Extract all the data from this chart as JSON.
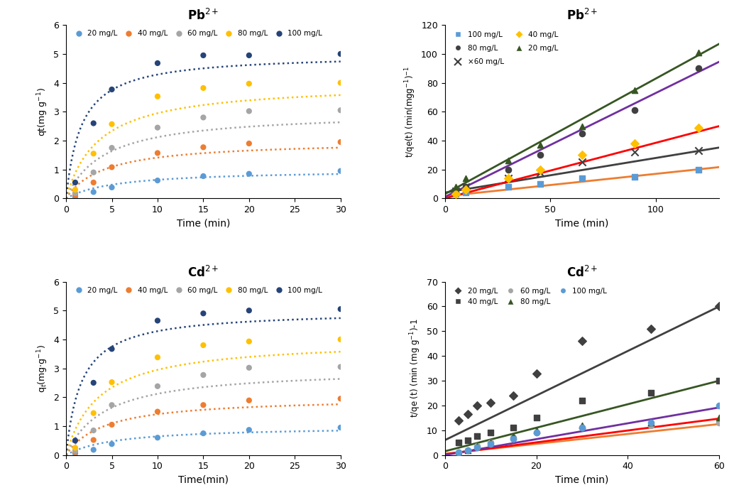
{
  "pb_kinetic": {
    "title": "Pb$^{2+}$",
    "xlabel": "Time (min)",
    "ylabel": "qt(mg g$^{-1}$)",
    "xlim": [
      0,
      30
    ],
    "ylim": [
      0,
      6
    ],
    "yticks": [
      0,
      1,
      2,
      3,
      4,
      5,
      6
    ],
    "xticks": [
      0,
      5,
      10,
      15,
      20,
      25,
      30
    ],
    "time_points": [
      1,
      3,
      5,
      10,
      15,
      20,
      30
    ],
    "series": [
      {
        "label": "20 mg/L",
        "color": "#5B9BD5",
        "qe": 1.0,
        "k2": 0.18,
        "data": [
          0.05,
          0.22,
          0.38,
          0.62,
          0.77,
          0.85,
          0.95
        ]
      },
      {
        "label": "40 mg/L",
        "color": "#ED7D31",
        "qe": 2.0,
        "k2": 0.12,
        "data": [
          0.12,
          0.55,
          1.08,
          1.57,
          1.77,
          1.9,
          1.95
        ]
      },
      {
        "label": "60 mg/L",
        "color": "#A5A5A5",
        "qe": 3.0,
        "k2": 0.08,
        "data": [
          0.18,
          0.9,
          1.75,
          2.45,
          2.8,
          3.02,
          3.05
        ]
      },
      {
        "label": "80 mg/L",
        "color": "#FFC000",
        "qe": 4.0,
        "k2": 0.07,
        "data": [
          0.3,
          1.55,
          2.57,
          3.53,
          3.82,
          3.97,
          4.0
        ]
      },
      {
        "label": "100 mg/L",
        "color": "#264478",
        "qe": 5.0,
        "k2": 0.12,
        "data": [
          0.55,
          2.6,
          3.77,
          4.68,
          4.95,
          4.95,
          5.0
        ]
      }
    ]
  },
  "pb_pseudo2": {
    "title": "Pb$^{2+}$",
    "xlabel": "Time (min)",
    "xlim": [
      0,
      130
    ],
    "ylim": [
      0,
      120
    ],
    "xticks": [
      0,
      50,
      100
    ],
    "yticks": [
      0,
      20,
      40,
      60,
      80,
      100,
      120
    ],
    "series": [
      {
        "label": "100 mg/L",
        "marker": "s",
        "mfc": "#5B9BD5",
        "mec": "#5B9BD5",
        "linecolor": "#ED7D31",
        "pts_x": [
          5,
          10,
          30,
          45,
          65,
          90,
          120
        ],
        "pts_y": [
          3.0,
          4.0,
          8.0,
          10.0,
          14.0,
          15.0,
          20.0
        ],
        "intercept": 1.5,
        "slope": 0.155
      },
      {
        "label": "80 mg/L",
        "marker": "o",
        "mfc": "#404040",
        "mec": "#404040",
        "linecolor": "#7030A0",
        "pts_x": [
          5,
          10,
          30,
          45,
          65,
          90,
          120
        ],
        "pts_y": [
          4.0,
          8.0,
          20.0,
          30.0,
          45.0,
          61.0,
          90.0
        ],
        "intercept": 1.0,
        "slope": 0.72
      },
      {
        "label": "60 mg/L",
        "marker": "x",
        "mfc": "#404040",
        "mec": "#404040",
        "linecolor": "#404040",
        "pts_x": [
          5,
          10,
          30,
          45,
          65,
          90,
          120
        ],
        "pts_y": [
          5.0,
          8.0,
          14.0,
          18.0,
          25.0,
          32.0,
          33.0
        ],
        "intercept": 4.0,
        "slope": 0.24
      },
      {
        "label": "40 mg/L",
        "marker": "D",
        "mfc": "#FFC000",
        "mec": "#FFC000",
        "linecolor": "#FF0000",
        "pts_x": [
          5,
          10,
          30,
          45,
          65,
          90,
          120
        ],
        "pts_y": [
          3.0,
          6.0,
          14.0,
          20.0,
          30.0,
          38.0,
          49.0
        ],
        "intercept": 0.0,
        "slope": 0.385
      },
      {
        "label": "20 mg/L",
        "marker": "^",
        "mfc": "#375623",
        "mec": "#375623",
        "linecolor": "#375623",
        "pts_x": [
          5,
          10,
          30,
          45,
          65,
          90,
          120
        ],
        "pts_y": [
          8.0,
          14.0,
          26.0,
          37.0,
          50.0,
          75.0,
          101.0
        ],
        "intercept": 3.0,
        "slope": 0.8
      }
    ]
  },
  "cd_kinetic": {
    "title": "Cd$^{2+}$",
    "xlabel": "Time(min)",
    "ylabel": "q$_t$(mg$\\cdot$g$^{-1}$)",
    "xlim": [
      0,
      30
    ],
    "ylim": [
      0,
      6
    ],
    "yticks": [
      0,
      1,
      2,
      3,
      4,
      5,
      6
    ],
    "xticks": [
      0,
      5,
      10,
      15,
      20,
      25,
      30
    ],
    "time_points": [
      1,
      3,
      5,
      10,
      15,
      20,
      30
    ],
    "series": [
      {
        "label": "20 mg/L",
        "color": "#5B9BD5",
        "qe": 1.0,
        "k2": 0.18,
        "data": [
          0.05,
          0.18,
          0.38,
          0.6,
          0.75,
          0.87,
          0.95
        ]
      },
      {
        "label": "40 mg/L",
        "color": "#ED7D31",
        "qe": 2.0,
        "k2": 0.12,
        "data": [
          0.1,
          0.52,
          1.05,
          1.5,
          1.73,
          1.89,
          1.95
        ]
      },
      {
        "label": "60 mg/L",
        "color": "#A5A5A5",
        "qe": 3.0,
        "k2": 0.08,
        "data": [
          0.15,
          0.85,
          1.73,
          2.38,
          2.77,
          3.02,
          3.05
        ]
      },
      {
        "label": "80 mg/L",
        "color": "#FFC000",
        "qe": 4.0,
        "k2": 0.07,
        "data": [
          0.25,
          1.45,
          2.52,
          3.38,
          3.8,
          3.93,
          4.0
        ]
      },
      {
        "label": "100 mg/L",
        "color": "#264478",
        "qe": 5.0,
        "k2": 0.12,
        "data": [
          0.5,
          2.5,
          3.67,
          4.65,
          4.9,
          5.0,
          5.05
        ]
      }
    ]
  },
  "cd_pseudo2": {
    "title": "Cd$^{2+}$",
    "xlabel": "Time (min)",
    "xlim": [
      0,
      60
    ],
    "ylim": [
      0,
      70
    ],
    "xticks": [
      0,
      20,
      40,
      60
    ],
    "yticks": [
      0,
      10,
      20,
      30,
      40,
      50,
      60,
      70
    ],
    "series": [
      {
        "label": "20 mg/L",
        "marker": "D",
        "mfc": "#404040",
        "mec": "#404040",
        "linecolor": "#404040",
        "pts_x": [
          3,
          5,
          7,
          10,
          15,
          20,
          30,
          45,
          60
        ],
        "pts_y": [
          14.0,
          16.5,
          20.0,
          21.0,
          24.0,
          33.0,
          46.0,
          51.0,
          60.0
        ],
        "intercept": 6.0,
        "slope": 0.9
      },
      {
        "label": "40 mg/L",
        "marker": "s",
        "mfc": "#404040",
        "mec": "#404040",
        "linecolor": "#375623",
        "pts_x": [
          3,
          5,
          7,
          10,
          15,
          20,
          30,
          45,
          60
        ],
        "pts_y": [
          5.0,
          6.0,
          7.5,
          9.0,
          11.0,
          15.0,
          22.0,
          25.0,
          30.0
        ],
        "intercept": 1.5,
        "slope": 0.475
      },
      {
        "label": "60 mg/L",
        "marker": "o",
        "mfc": "#A5A5A5",
        "mec": "#A5A5A5",
        "linecolor": "#ED7D31",
        "pts_x": [
          3,
          5,
          7,
          10,
          15,
          20,
          30,
          45,
          60
        ],
        "pts_y": [
          1.0,
          2.0,
          3.5,
          5.0,
          7.0,
          9.0,
          11.0,
          12.0,
          13.0
        ],
        "intercept": 0.5,
        "slope": 0.2
      },
      {
        "label": "80 mg/L",
        "marker": "^",
        "mfc": "#375623",
        "mec": "#375623",
        "linecolor": "#FF0000",
        "pts_x": [
          3,
          5,
          7,
          10,
          15,
          20,
          30,
          45,
          60
        ],
        "pts_y": [
          1.0,
          2.0,
          3.5,
          5.0,
          7.5,
          10.0,
          12.0,
          13.0,
          15.0
        ],
        "intercept": 0.3,
        "slope": 0.24
      },
      {
        "label": "100 mg/L",
        "marker": "o",
        "mfc": "#5B9BD5",
        "mec": "#5B9BD5",
        "linecolor": "#7030A0",
        "pts_x": [
          3,
          5,
          7,
          10,
          15,
          20,
          30,
          45,
          60
        ],
        "pts_y": [
          1.0,
          2.0,
          3.0,
          4.5,
          6.5,
          9.0,
          11.0,
          13.0,
          20.0
        ],
        "intercept": 0.0,
        "slope": 0.32
      }
    ]
  }
}
